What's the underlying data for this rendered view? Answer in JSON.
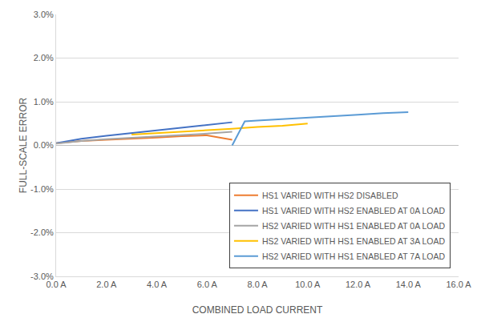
{
  "chart_data": {
    "type": "line",
    "x_label": "COMBINED LOAD CURRENT",
    "y_label": "FULL-SCALE ERROR",
    "xlim": [
      0,
      16
    ],
    "xticks": [
      {
        "value": 0,
        "label": "0.0 A"
      },
      {
        "value": 2,
        "label": "2.0 A"
      },
      {
        "value": 4,
        "label": "4.0 A"
      },
      {
        "value": 6,
        "label": "6.0 A"
      },
      {
        "value": 8,
        "label": "8.0 A"
      },
      {
        "value": 10,
        "label": "10.0 A"
      },
      {
        "value": 12,
        "label": "12.0 A"
      },
      {
        "value": 14,
        "label": "14.0 A"
      },
      {
        "value": 16,
        "label": "16.0 A"
      }
    ],
    "ylim": [
      -3,
      3
    ],
    "yticks": [
      {
        "value": -3,
        "label": "-3.0%"
      },
      {
        "value": -2,
        "label": "-2.0%"
      },
      {
        "value": -1,
        "label": "-1.0%"
      },
      {
        "value": 0,
        "label": "0.0%"
      },
      {
        "value": 1,
        "label": "1.0%"
      },
      {
        "value": 2,
        "label": "2.0%"
      },
      {
        "value": 3,
        "label": "3.0%"
      }
    ],
    "grid": true,
    "legend": "lower right",
    "series": [
      {
        "name": "HS1 VARIED WITH HS2 DISABLED",
        "color": "#ed7d31",
        "x": [
          0,
          1,
          2,
          3,
          4,
          5,
          6,
          7
        ],
        "values": [
          0.05,
          0.1,
          0.13,
          0.15,
          0.18,
          0.21,
          0.23,
          0.13
        ]
      },
      {
        "name": "HS1 VARIED WITH HS2 ENABLED AT 0A LOAD",
        "color": "#4472c4",
        "x": [
          0,
          1,
          2,
          3,
          4,
          5,
          6,
          7
        ],
        "values": [
          0.05,
          0.15,
          0.22,
          0.28,
          0.34,
          0.4,
          0.46,
          0.53
        ]
      },
      {
        "name": "HS2 VARIED WITH HS1 ENABLED AT 0A LOAD",
        "color": "#a5a5a5",
        "x": [
          0,
          1,
          2,
          3,
          4,
          5,
          6,
          7
        ],
        "values": [
          0.04,
          0.1,
          0.14,
          0.17,
          0.2,
          0.23,
          0.27,
          0.31
        ]
      },
      {
        "name": "HS2 VARIED WITH HS1 ENABLED AT 3A LOAD",
        "color": "#ffc000",
        "x": [
          3,
          4,
          5,
          6,
          7,
          8,
          9,
          10
        ],
        "values": [
          0.25,
          0.28,
          0.31,
          0.34,
          0.38,
          0.42,
          0.45,
          0.5
        ]
      },
      {
        "name": "HS2 VARIED WITH HS1 ENABLED AT 7A LOAD",
        "color": "#5b9bd5",
        "x": [
          7,
          7.5,
          8,
          9,
          10,
          11,
          12,
          13,
          14
        ],
        "values": [
          0.0,
          0.55,
          0.57,
          0.6,
          0.63,
          0.66,
          0.7,
          0.74,
          0.76
        ]
      }
    ]
  }
}
